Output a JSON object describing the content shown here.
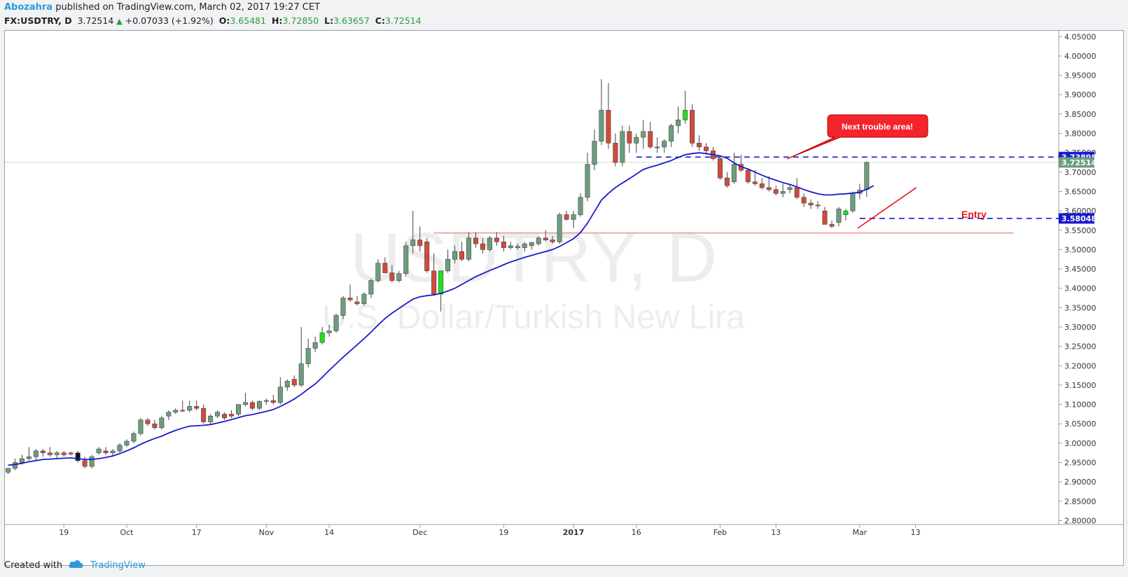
{
  "header": {
    "author": "Abozahra",
    "published": "published on TradingView.com, March 02, 2017 19:27 CET",
    "symbol": "FX:USDTRY, D",
    "last": "3.72514",
    "change": "+0.07033 (+1.92%)",
    "o_label": "O:",
    "o_value": "3.65481",
    "h_label": "H:",
    "h_value": "3.72850",
    "l_label": "L:",
    "l_value": "3.63657",
    "c_label": "C:",
    "c_value": "3.72514"
  },
  "footer": {
    "created_with": "Created with",
    "brand": "TradingView"
  },
  "colors": {
    "up": "#6b9e7e",
    "down": "#d24a3a",
    "highlight": "#1fe01f",
    "ma": "#1a1ad0",
    "level": "#1a1ad0",
    "support": "#f4a6a6",
    "note_bg": "#f3242b",
    "price_tag": "#6b9e7e"
  },
  "chart_data": {
    "type": "candlestick",
    "watermark_symbol": "USDTRY, D",
    "watermark_name": "U.S. Dollar/Turkish New Lira",
    "y_ticks": [
      "4.05000",
      "4.00000",
      "3.95000",
      "3.90000",
      "3.85000",
      "3.80000",
      "3.75000",
      "3.70000",
      "3.65000",
      "3.60000",
      "3.55000",
      "3.50000",
      "3.45000",
      "3.40000",
      "3.35000",
      "3.30000",
      "3.25000",
      "3.20000",
      "3.15000",
      "3.10000",
      "3.05000",
      "3.00000",
      "2.95000",
      "2.90000",
      "2.85000",
      "2.80000"
    ],
    "ylim": [
      2.79,
      4.065
    ],
    "x_labels": [
      {
        "label": "19",
        "i": 8
      },
      {
        "label": "Oct",
        "i": 17
      },
      {
        "label": "17",
        "i": 27
      },
      {
        "label": "Nov",
        "i": 37
      },
      {
        "label": "14",
        "i": 46
      },
      {
        "label": "Dec",
        "i": 59
      },
      {
        "label": "19",
        "i": 71
      },
      {
        "label": "2017",
        "i": 81
      },
      {
        "label": "16",
        "i": 90
      },
      {
        "label": "Feb",
        "i": 102
      },
      {
        "label": "13",
        "i": 110
      },
      {
        "label": "Mar",
        "i": 122
      },
      {
        "label": "13",
        "i": 130
      }
    ],
    "bold_x_label": "2017",
    "candles": [
      [
        2.925,
        2.935,
        2.92,
        2.935
      ],
      [
        2.935,
        2.96,
        2.93,
        2.95
      ],
      [
        2.95,
        2.97,
        2.945,
        2.96
      ],
      [
        2.96,
        2.99,
        2.955,
        2.965
      ],
      [
        2.965,
        2.985,
        2.955,
        2.98
      ],
      [
        2.98,
        2.985,
        2.965,
        2.975
      ],
      [
        2.975,
        2.99,
        2.965,
        2.97
      ],
      [
        2.97,
        2.98,
        2.96,
        2.975
      ],
      [
        2.975,
        2.98,
        2.965,
        2.97
      ],
      [
        2.975,
        2.978,
        2.968,
        2.972
      ],
      [
        2.975,
        2.98,
        2.95,
        2.955
      ],
      [
        2.955,
        2.965,
        2.935,
        2.94
      ],
      [
        2.94,
        2.97,
        2.935,
        2.965
      ],
      [
        2.975,
        2.99,
        2.97,
        2.985
      ],
      [
        2.98,
        2.99,
        2.97,
        2.975
      ],
      [
        2.975,
        2.985,
        2.965,
        2.98
      ],
      [
        2.98,
        3.0,
        2.975,
        2.995
      ],
      [
        2.995,
        3.01,
        2.99,
        3.005
      ],
      [
        3.005,
        3.03,
        3.0,
        3.025
      ],
      [
        3.025,
        3.065,
        3.02,
        3.06
      ],
      [
        3.06,
        3.065,
        3.045,
        3.05
      ],
      [
        3.05,
        3.06,
        3.035,
        3.04
      ],
      [
        3.04,
        3.07,
        3.035,
        3.065
      ],
      [
        3.07,
        3.085,
        3.06,
        3.08
      ],
      [
        3.08,
        3.09,
        3.075,
        3.085
      ],
      [
        3.085,
        3.11,
        3.08,
        3.083
      ],
      [
        3.085,
        3.11,
        3.08,
        3.095
      ],
      [
        3.095,
        3.11,
        3.085,
        3.09
      ],
      [
        3.09,
        3.1,
        3.05,
        3.055
      ],
      [
        3.055,
        3.075,
        3.05,
        3.07
      ],
      [
        3.07,
        3.085,
        3.065,
        3.08
      ],
      [
        3.075,
        3.08,
        3.06,
        3.065
      ],
      [
        3.075,
        3.085,
        3.065,
        3.07
      ],
      [
        3.075,
        3.1,
        3.07,
        3.1
      ],
      [
        3.1,
        3.13,
        3.095,
        3.105
      ],
      [
        3.105,
        3.11,
        3.085,
        3.09
      ],
      [
        3.09,
        3.11,
        3.085,
        3.108
      ],
      [
        3.108,
        3.115,
        3.1,
        3.11
      ],
      [
        3.11,
        3.125,
        3.1,
        3.105
      ],
      [
        3.105,
        3.17,
        3.1,
        3.145
      ],
      [
        3.145,
        3.165,
        3.135,
        3.16
      ],
      [
        3.165,
        3.175,
        3.145,
        3.15
      ],
      [
        3.15,
        3.3,
        3.145,
        3.205
      ],
      [
        3.205,
        3.27,
        3.195,
        3.245
      ],
      [
        3.245,
        3.275,
        3.235,
        3.26
      ],
      [
        3.26,
        3.3,
        3.255,
        3.285
      ],
      [
        3.285,
        3.305,
        3.275,
        3.29
      ],
      [
        3.29,
        3.335,
        3.285,
        3.33
      ],
      [
        3.33,
        3.38,
        3.32,
        3.375
      ],
      [
        3.375,
        3.41,
        3.365,
        3.37
      ],
      [
        3.365,
        3.38,
        3.355,
        3.36
      ],
      [
        3.36,
        3.39,
        3.355,
        3.385
      ],
      [
        3.385,
        3.425,
        3.375,
        3.42
      ],
      [
        3.42,
        3.475,
        3.415,
        3.465
      ],
      [
        3.465,
        3.48,
        3.44,
        3.44
      ],
      [
        3.44,
        3.46,
        3.415,
        3.42
      ],
      [
        3.42,
        3.445,
        3.415,
        3.438
      ],
      [
        3.438,
        3.52,
        3.43,
        3.51
      ],
      [
        3.51,
        3.6,
        3.49,
        3.525
      ],
      [
        3.525,
        3.56,
        3.495,
        3.51
      ],
      [
        3.52,
        3.53,
        3.44,
        3.445
      ],
      [
        3.445,
        3.49,
        3.38,
        3.385
      ],
      [
        3.385,
        3.445,
        3.34,
        3.445
      ],
      [
        3.445,
        3.5,
        3.44,
        3.475
      ],
      [
        3.475,
        3.51,
        3.465,
        3.495
      ],
      [
        3.495,
        3.52,
        3.47,
        3.475
      ],
      [
        3.475,
        3.545,
        3.47,
        3.53
      ],
      [
        3.53,
        3.545,
        3.505,
        3.515
      ],
      [
        3.515,
        3.53,
        3.49,
        3.5
      ],
      [
        3.5,
        3.535,
        3.495,
        3.53
      ],
      [
        3.53,
        3.545,
        3.51,
        3.52
      ],
      [
        3.52,
        3.535,
        3.495,
        3.505
      ],
      [
        3.505,
        3.52,
        3.5,
        3.51
      ],
      [
        3.505,
        3.515,
        3.5,
        3.508
      ],
      [
        3.505,
        3.52,
        3.495,
        3.515
      ],
      [
        3.51,
        3.52,
        3.5,
        3.518
      ],
      [
        3.515,
        3.535,
        3.51,
        3.53
      ],
      [
        3.53,
        3.55,
        3.52,
        3.525
      ],
      [
        3.525,
        3.535,
        3.515,
        3.52
      ],
      [
        3.52,
        3.595,
        3.515,
        3.59
      ],
      [
        3.59,
        3.6,
        3.575,
        3.578
      ],
      [
        3.578,
        3.6,
        3.555,
        3.59
      ],
      [
        3.59,
        3.645,
        3.585,
        3.635
      ],
      [
        3.635,
        3.75,
        3.625,
        3.72
      ],
      [
        3.72,
        3.81,
        3.705,
        3.78
      ],
      [
        3.78,
        3.94,
        3.77,
        3.86
      ],
      [
        3.86,
        3.93,
        3.76,
        3.775
      ],
      [
        3.775,
        3.8,
        3.715,
        3.725
      ],
      [
        3.725,
        3.82,
        3.715,
        3.805
      ],
      [
        3.805,
        3.82,
        3.75,
        3.775
      ],
      [
        3.775,
        3.8,
        3.75,
        3.79
      ],
      [
        3.79,
        3.835,
        3.76,
        3.805
      ],
      [
        3.805,
        3.83,
        3.76,
        3.765
      ],
      [
        3.765,
        3.79,
        3.75,
        3.765
      ],
      [
        3.765,
        3.785,
        3.75,
        3.78
      ],
      [
        3.78,
        3.825,
        3.765,
        3.82
      ],
      [
        3.82,
        3.87,
        3.8,
        3.835
      ],
      [
        3.835,
        3.91,
        3.825,
        3.86
      ],
      [
        3.86,
        3.875,
        3.765,
        3.775
      ],
      [
        3.775,
        3.795,
        3.755,
        3.765
      ],
      [
        3.765,
        3.775,
        3.745,
        3.755
      ],
      [
        3.755,
        3.765,
        3.73,
        3.735
      ],
      [
        3.735,
        3.74,
        3.68,
        3.685
      ],
      [
        3.685,
        3.7,
        3.66,
        3.665
      ],
      [
        3.675,
        3.75,
        3.67,
        3.72
      ],
      [
        3.72,
        3.745,
        3.7,
        3.705
      ],
      [
        3.705,
        3.71,
        3.67,
        3.675
      ],
      [
        3.675,
        3.705,
        3.665,
        3.67
      ],
      [
        3.67,
        3.685,
        3.655,
        3.66
      ],
      [
        3.66,
        3.69,
        3.65,
        3.655
      ],
      [
        3.655,
        3.665,
        3.64,
        3.645
      ],
      [
        3.645,
        3.67,
        3.635,
        3.65
      ],
      [
        3.655,
        3.67,
        3.645,
        3.66
      ],
      [
        3.66,
        3.685,
        3.63,
        3.635
      ],
      [
        3.635,
        3.645,
        3.61,
        3.62
      ],
      [
        3.62,
        3.63,
        3.605,
        3.615
      ],
      [
        3.615,
        3.625,
        3.605,
        3.613
      ],
      [
        3.6,
        3.61,
        3.565,
        3.565
      ],
      [
        3.565,
        3.575,
        3.555,
        3.56
      ],
      [
        3.57,
        3.61,
        3.56,
        3.605
      ],
      [
        3.59,
        3.605,
        3.575,
        3.6
      ],
      [
        3.6,
        3.65,
        3.595,
        3.645
      ],
      [
        3.645,
        3.67,
        3.63,
        3.654
      ],
      [
        3.65481,
        3.7285,
        3.63657,
        3.72514
      ]
    ],
    "highlight_candles": [
      10,
      45,
      62,
      97,
      120
    ],
    "moving_average": [
      2.943,
      2.945,
      2.948,
      2.952,
      2.955,
      2.958,
      2.959,
      2.96,
      2.961,
      2.962,
      2.96,
      2.958,
      2.958,
      2.96,
      2.963,
      2.967,
      2.973,
      2.98,
      2.988,
      2.997,
      3.005,
      3.012,
      3.018,
      3.026,
      3.033,
      3.039,
      3.044,
      3.045,
      3.046,
      3.048,
      3.052,
      3.056,
      3.061,
      3.066,
      3.071,
      3.074,
      3.078,
      3.082,
      3.087,
      3.095,
      3.104,
      3.114,
      3.126,
      3.14,
      3.153,
      3.17,
      3.188,
      3.205,
      3.222,
      3.238,
      3.254,
      3.27,
      3.287,
      3.305,
      3.322,
      3.336,
      3.348,
      3.36,
      3.372,
      3.378,
      3.381,
      3.383,
      3.387,
      3.393,
      3.4,
      3.41,
      3.42,
      3.43,
      3.438,
      3.446,
      3.453,
      3.461,
      3.468,
      3.474,
      3.48,
      3.485,
      3.49,
      3.495,
      3.5,
      3.508,
      3.518,
      3.528,
      3.544,
      3.568,
      3.598,
      3.628,
      3.645,
      3.66,
      3.672,
      3.683,
      3.695,
      3.707,
      3.713,
      3.718,
      3.724,
      3.73,
      3.738,
      3.745,
      3.748,
      3.75,
      3.748,
      3.745,
      3.742,
      3.736,
      3.724,
      3.714,
      3.708,
      3.7,
      3.692,
      3.685,
      3.679,
      3.673,
      3.668,
      3.662,
      3.655,
      3.649,
      3.644,
      3.641,
      3.641,
      3.643,
      3.644,
      3.646,
      3.648,
      3.656,
      3.665
    ],
    "levels": [
      {
        "value": 3.73898,
        "label": "3.73898"
      },
      {
        "value": 3.58048,
        "label": "3.58048"
      }
    ],
    "support_level": 3.543,
    "current_price": {
      "value": 3.72514,
      "label": "3.72514"
    },
    "annotations": {
      "callout": "Next trouble area!",
      "entry": "Entry"
    }
  }
}
